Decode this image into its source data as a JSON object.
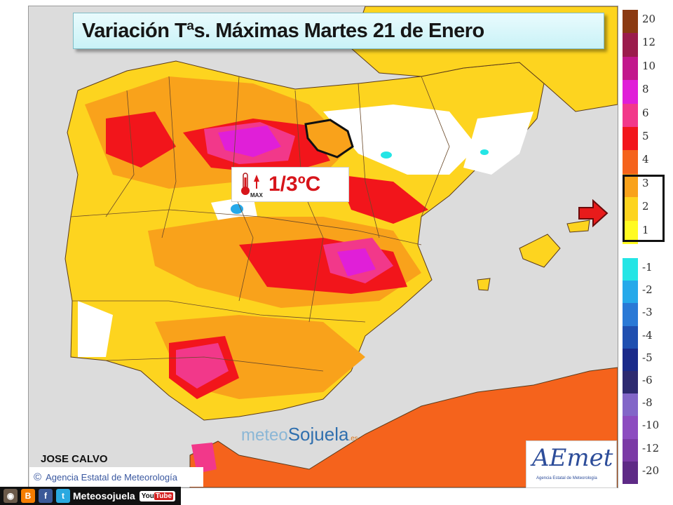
{
  "title": "Variación Tªs. Máximas Martes 21 de Enero",
  "variation_label": "1/3ºC",
  "thermo_max_text": "MAX",
  "watermark": {
    "part1": "meteo",
    "part2": "Sojuela",
    "part3": ".es"
  },
  "author": "JOSE CALVO",
  "agency": "Agencia Estatal de Meteorología",
  "aemet_logo": {
    "word": "AEmet",
    "sub": "Agencia Estatal de Meteorología"
  },
  "social": {
    "name": "Meteosojuela",
    "youtube_label": "You",
    "youtube_tube": "Tube",
    "icons": [
      "instagram-icon",
      "blogger-icon",
      "facebook-icon",
      "twitter-icon",
      "youtube-icon"
    ]
  },
  "legend": {
    "positive": [
      {
        "label": "20",
        "color": "#8b3a12"
      },
      {
        "label": "12",
        "color": "#9b1c4c"
      },
      {
        "label": "10",
        "color": "#c2188c"
      },
      {
        "label": "8",
        "color": "#e01fd8"
      },
      {
        "label": "6",
        "color": "#f2388a"
      },
      {
        "label": "5",
        "color": "#f2151b"
      },
      {
        "label": "4",
        "color": "#f5631c"
      },
      {
        "label": "3",
        "color": "#f9a21b"
      },
      {
        "label": "2",
        "color": "#fdd41f"
      },
      {
        "label": "1",
        "color": "#fffb22"
      }
    ],
    "negative": [
      {
        "label": "-1",
        "color": "#24e5e5"
      },
      {
        "label": "-2",
        "color": "#26a9ea"
      },
      {
        "label": "-3",
        "color": "#2a79d6"
      },
      {
        "label": "-4",
        "color": "#1f4fb0"
      },
      {
        "label": "-5",
        "color": "#1a2a8a"
      },
      {
        "label": "-6",
        "color": "#2d2a70"
      },
      {
        "label": "-8",
        "color": "#8266c8"
      },
      {
        "label": "-10",
        "color": "#8c4cc0"
      },
      {
        "label": "-12",
        "color": "#7b3aa6"
      },
      {
        "label": "-20",
        "color": "#5e2a86"
      }
    ],
    "highlighted_range": [
      "3",
      "1"
    ]
  },
  "colors": {
    "sea": "#dcdcdc",
    "land_base": "#fdd41f",
    "warm_orange": "#f9a21b",
    "hot_red": "#f2151b",
    "magenta": "#f2388a",
    "arrow": "#e81b1b"
  }
}
